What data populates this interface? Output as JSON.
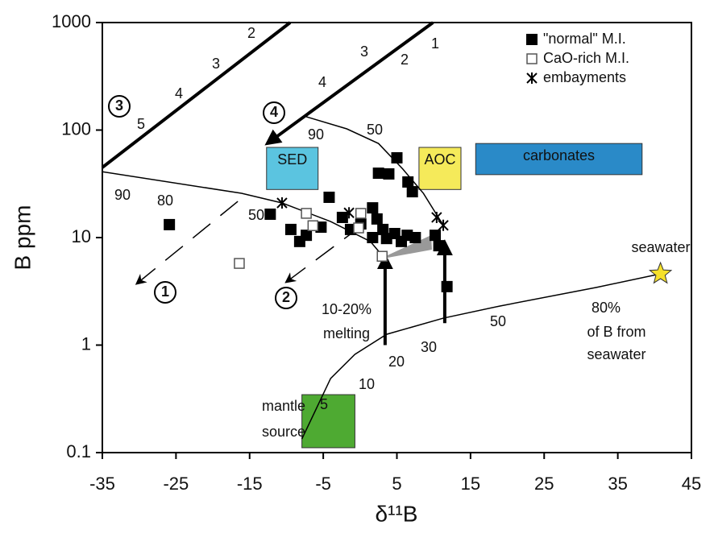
{
  "chart_data": {
    "type": "scatter",
    "x_label": "δ¹¹B",
    "y_label": "B ppm",
    "xlim": [
      -35,
      45
    ],
    "xticks": [
      -35,
      -25,
      -15,
      -5,
      5,
      15,
      25,
      35,
      45
    ],
    "ylim": [
      0.1,
      1000
    ],
    "yticks": [
      0.1,
      1,
      10,
      100,
      1000
    ],
    "y_scale": "log",
    "legend": "top-right",
    "series": [
      {
        "name": "\"normal\" M.I.",
        "marker": "filled-square",
        "color": "#000000",
        "x": [
          -25.9,
          -12.2,
          -9.4,
          -8.2,
          -7.3,
          -4.2,
          -5.3,
          -2.4,
          -1.3,
          0.1,
          1.7,
          2.3,
          3.1,
          3.6,
          4.7,
          5.6,
          6.4,
          7.5,
          2.5,
          3.9,
          5.0,
          6.5,
          7.1,
          10.2,
          10.7,
          11.8,
          1.7
        ],
        "values": [
          13.2,
          16.5,
          11.9,
          9.2,
          10.5,
          23.7,
          12.5,
          15.4,
          11.9,
          13.4,
          18.9,
          14.9,
          11.9,
          9.8,
          10.9,
          9.2,
          10.5,
          10,
          39.7,
          39.1,
          55.2,
          32.9,
          26.7,
          10.5,
          8.4,
          3.5,
          10
        ]
      },
      {
        "name": "CaO-rich M.I.",
        "marker": "open-square",
        "color": "#555555",
        "x": [
          -16.4,
          -7.3,
          -6.4,
          0.1,
          -0.2,
          3.0
        ],
        "values": [
          5.75,
          16.8,
          12.9,
          16.8,
          12.3,
          6.7
        ]
      },
      {
        "name": "embayments",
        "marker": "asterisk",
        "color": "#000000",
        "x": [
          -10.6,
          -1.5,
          10.4,
          11.3
        ],
        "values": [
          21,
          17,
          15.4,
          13
        ]
      }
    ],
    "curves": [
      {
        "style": "thick",
        "x": [
          -35,
          -9.5
        ],
        "values": [
          44.9,
          1000
        ]
      },
      {
        "style": "thick-arrow",
        "x": [
          9.9,
          -12.6
        ],
        "values": [
          1000,
          75
        ]
      },
      {
        "style": "thin",
        "x": [
          -35,
          -16.1,
          -10.6,
          -4.0,
          1.4,
          3.1
        ],
        "values": [
          41,
          25.8,
          21,
          14.1,
          9.2,
          6.7
        ]
      },
      {
        "style": "thin",
        "x": [
          -7.3,
          -1.8,
          2.5,
          5.8,
          8.6,
          11.3
        ],
        "values": [
          133,
          102.6,
          75,
          43.4,
          25.8,
          13
        ]
      },
      {
        "style": "thin",
        "x": [
          -7.9,
          -4.0,
          -0.7,
          3.6,
          11.3,
          19.0,
          32.1,
          40.8
        ],
        "values": [
          0.134,
          0.489,
          0.82,
          1.26,
          1.78,
          2.31,
          3.44,
          4.6
        ]
      },
      {
        "style": "dashed-arrow",
        "x": [
          -16.6,
          -30.3
        ],
        "values": [
          21.7,
          3.74
        ]
      },
      {
        "style": "dashed-arrow",
        "x": [
          0.3,
          -10.0
        ],
        "values": [
          13,
          3.87
        ]
      },
      {
        "style": "thick-arrow",
        "x": [
          3.4,
          3.4
        ],
        "values": [
          1.0,
          6.7
        ]
      },
      {
        "style": "thick-arrow",
        "x": [
          11.5,
          11.5
        ],
        "values": [
          1.6,
          9.0
        ]
      }
    ],
    "regions": [
      {
        "label": "SED",
        "color": "#5bc4e0",
        "x": [
          -12.7,
          -5.7
        ],
        "values": [
          28,
          69
        ]
      },
      {
        "label": "AOC",
        "color": "#f5ea5a",
        "x": [
          8.0,
          13.7
        ],
        "values": [
          28,
          69
        ]
      },
      {
        "label": "carbonates",
        "color": "#2a8ac8",
        "x": [
          15.7,
          38.3
        ],
        "values": [
          38.5,
          75
        ]
      },
      {
        "color": "#4eaa32",
        "x": [
          -7.9,
          -0.7
        ],
        "values": [
          0.111,
          0.346
        ]
      }
    ],
    "seawater_point": {
      "x": 40.8,
      "value": 4.6
    },
    "annotations": [
      "3",
      "4",
      "1",
      "2",
      "5",
      "4",
      "3",
      "2",
      "4",
      "3",
      "2",
      "1",
      "90",
      "80",
      "50",
      "90",
      "50",
      "5",
      "10",
      "20",
      "30",
      "50",
      "10-20%",
      "melting",
      "80%",
      "of B from",
      "seawater",
      "seawater",
      "mantle",
      "source"
    ]
  }
}
